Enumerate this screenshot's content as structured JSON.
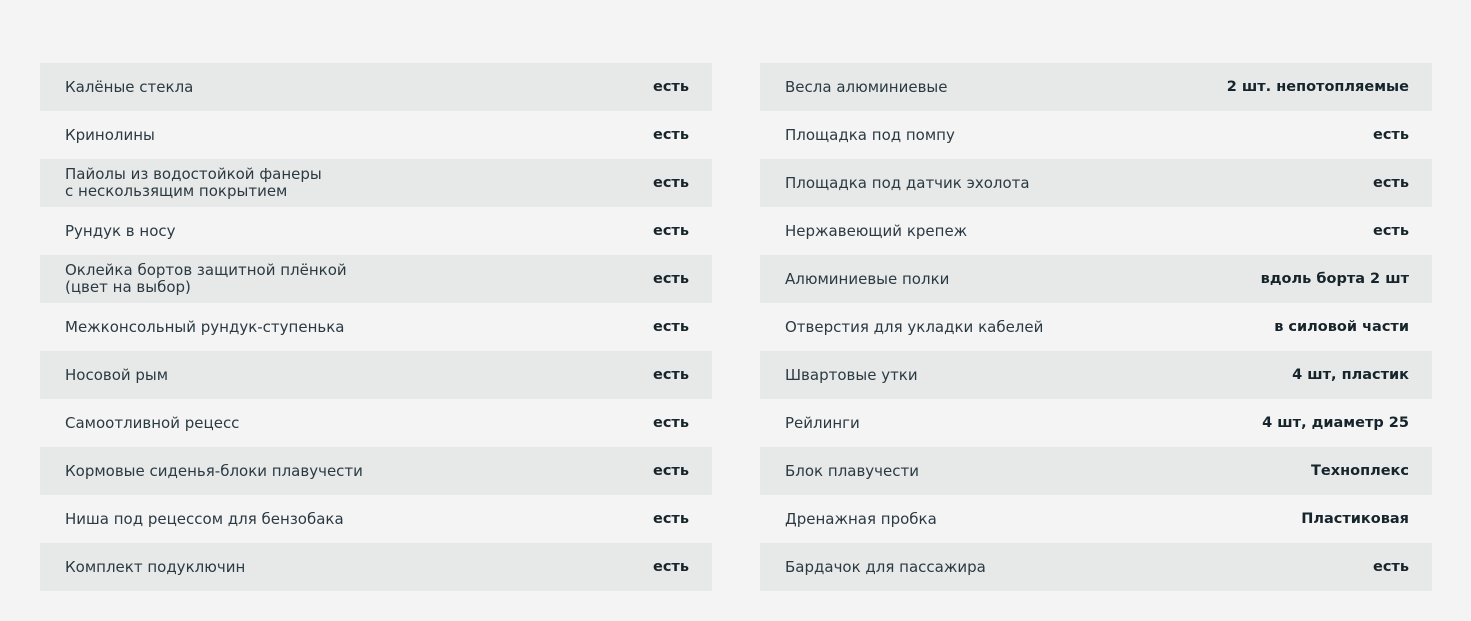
{
  "left": [
    {
      "label": "Калёные стекла",
      "value": "есть"
    },
    {
      "label": "Кринолины",
      "value": "есть"
    },
    {
      "label": "Пайолы из водостойкой фанеры\nс нескользящим покрытием",
      "value": "есть"
    },
    {
      "label": "Рундук в носу",
      "value": "есть"
    },
    {
      "label": "Оклейка бортов защитной плёнкой\n(цвет на выбор)",
      "value": "есть"
    },
    {
      "label": "Межконсольный рундук-ступенька",
      "value": "есть"
    },
    {
      "label": "Носовой рым",
      "value": "есть"
    },
    {
      "label": "Самоотливной рецесс",
      "value": "есть"
    },
    {
      "label": "Кормовые сиденья-блоки плавучести",
      "value": "есть"
    },
    {
      "label": "Ниша под рецессом для бензобака",
      "value": "есть"
    },
    {
      "label": "Комплект подуключин",
      "value": "есть"
    }
  ],
  "right": [
    {
      "label": "Весла алюминиевые",
      "value": "2 шт. непотопляемые"
    },
    {
      "label": "Площадка под помпу",
      "value": "есть"
    },
    {
      "label": "Площадка под датчик эхолота",
      "value": "есть"
    },
    {
      "label": "Нержавеющий крепеж",
      "value": "есть"
    },
    {
      "label": "Алюминиевые полки",
      "value": "вдоль борта 2 шт"
    },
    {
      "label": "Отверстия для укладки кабелей",
      "value": "в силовой части"
    },
    {
      "label": "Швартовые утки",
      "value": "4 шт, пластик"
    },
    {
      "label": "Рейлинги",
      "value": "4 шт, диаметр 25"
    },
    {
      "label": "Блок плавучести",
      "value": "Техноплекс"
    },
    {
      "label": "Дренажная пробка",
      "value": "Пластиковая"
    },
    {
      "label": "Бардачок для пассажира",
      "value": "есть"
    }
  ]
}
